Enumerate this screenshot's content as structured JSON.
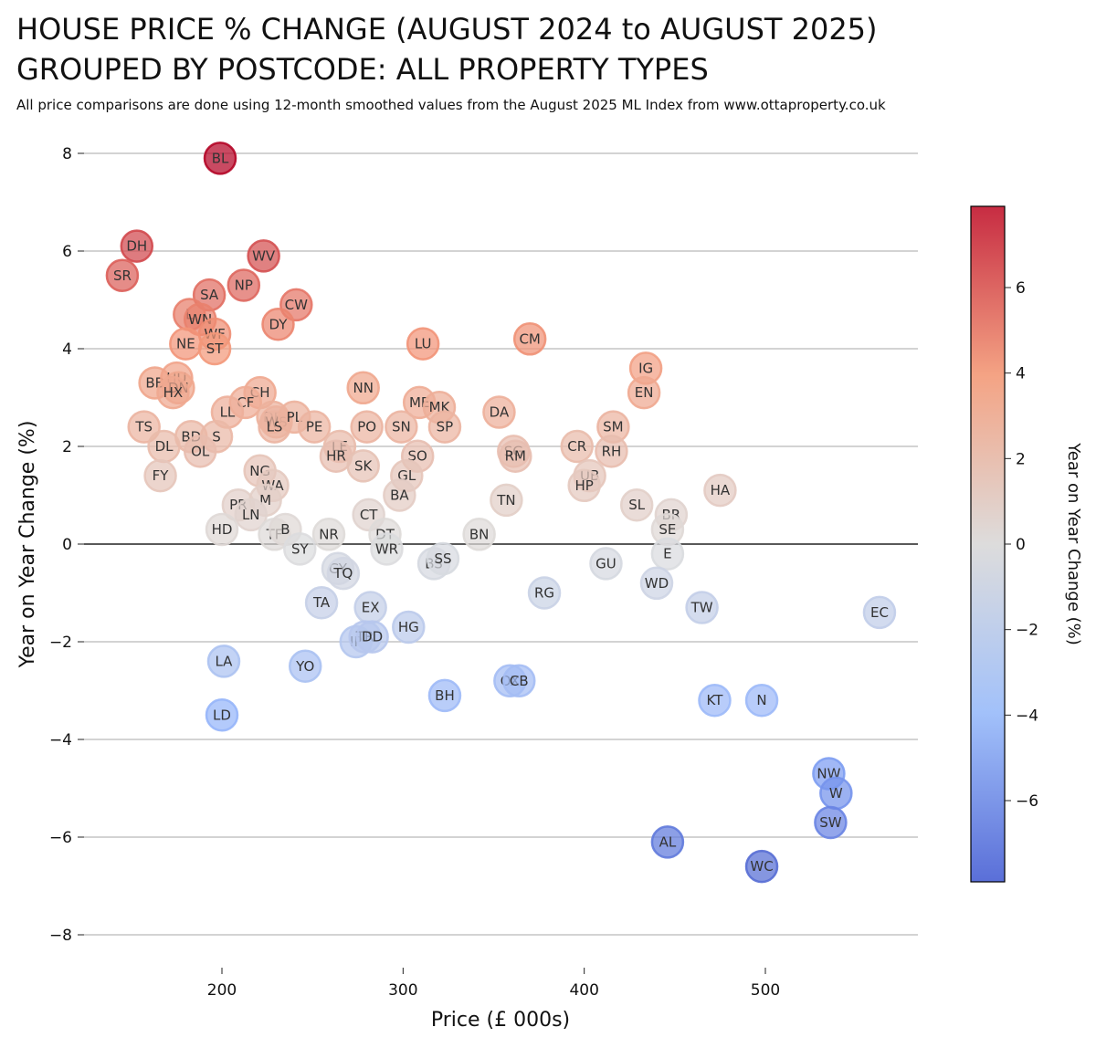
{
  "page": {
    "title_line1": "HOUSE PRICE % CHANGE (AUGUST 2024 to AUGUST 2025)",
    "title_line2": "GROUPED BY POSTCODE: ALL PROPERTY TYPES",
    "subtitle": "All price comparisons are done using 12-month smoothed values from the August 2025 ML Index from www.ottaproperty.co.uk"
  },
  "chart_data": {
    "type": "scatter",
    "xlabel": "Price (£ 000s)",
    "ylabel": "Year on Year Change (%)",
    "xlim": [
      122,
      584
    ],
    "ylim": [
      -8.5,
      8.5
    ],
    "xticks": [
      200,
      300,
      400,
      500
    ],
    "yticks": [
      -8,
      -6,
      -4,
      -2,
      0,
      2,
      4,
      6,
      8
    ],
    "grid": "horizontal",
    "colorbar": {
      "label": "Year on Year Change (%)",
      "range": [
        -7.9,
        7.9
      ],
      "ticks": [
        -6,
        -4,
        -2,
        0,
        2,
        4,
        6
      ],
      "colormap": "coolwarm"
    },
    "points": [
      {
        "label": "BL",
        "x": 199,
        "y": 7.9
      },
      {
        "label": "DH",
        "x": 153,
        "y": 6.1
      },
      {
        "label": "SR",
        "x": 145,
        "y": 5.5
      },
      {
        "label": "WV",
        "x": 223,
        "y": 5.9
      },
      {
        "label": "SA",
        "x": 193,
        "y": 5.1
      },
      {
        "label": "NP",
        "x": 212,
        "y": 5.3
      },
      {
        "label": "CW",
        "x": 241,
        "y": 4.9
      },
      {
        "label": "DY",
        "x": 231,
        "y": 4.5
      },
      {
        "label": "L",
        "x": 182,
        "y": 4.7
      },
      {
        "label": "WN",
        "x": 188,
        "y": 4.6
      },
      {
        "label": "WF",
        "x": 196,
        "y": 4.3
      },
      {
        "label": "NE",
        "x": 180,
        "y": 4.1
      },
      {
        "label": "ST",
        "x": 196,
        "y": 4.0
      },
      {
        "label": "LU",
        "x": 311,
        "y": 4.1
      },
      {
        "label": "CM",
        "x": 370,
        "y": 4.2
      },
      {
        "label": "IG",
        "x": 434,
        "y": 3.6
      },
      {
        "label": "EN",
        "x": 433,
        "y": 3.1
      },
      {
        "label": "BB",
        "x": 163,
        "y": 3.3
      },
      {
        "label": "HU",
        "x": 175,
        "y": 3.4
      },
      {
        "label": "DN",
        "x": 176,
        "y": 3.2
      },
      {
        "label": "HX",
        "x": 173,
        "y": 3.1
      },
      {
        "label": "CH",
        "x": 221,
        "y": 3.1
      },
      {
        "label": "CF",
        "x": 213,
        "y": 2.9
      },
      {
        "label": "LL",
        "x": 203,
        "y": 2.7
      },
      {
        "label": "NN",
        "x": 278,
        "y": 3.2
      },
      {
        "label": "ME",
        "x": 309,
        "y": 2.9
      },
      {
        "label": "MK",
        "x": 320,
        "y": 2.8
      },
      {
        "label": "DA",
        "x": 353,
        "y": 2.7
      },
      {
        "label": "DE",
        "x": 228,
        "y": 2.6
      },
      {
        "label": "WS",
        "x": 230,
        "y": 2.5
      },
      {
        "label": "LS",
        "x": 229,
        "y": 2.4
      },
      {
        "label": "PL",
        "x": 240,
        "y": 2.6
      },
      {
        "label": "PE",
        "x": 251,
        "y": 2.4
      },
      {
        "label": "TS",
        "x": 157,
        "y": 2.4
      },
      {
        "label": "BD",
        "x": 183,
        "y": 2.2
      },
      {
        "label": "S",
        "x": 197,
        "y": 2.2
      },
      {
        "label": "DL",
        "x": 168,
        "y": 2.0
      },
      {
        "label": "OL",
        "x": 188,
        "y": 1.9
      },
      {
        "label": "SN",
        "x": 299,
        "y": 2.4
      },
      {
        "label": "PO",
        "x": 280,
        "y": 2.4
      },
      {
        "label": "SP",
        "x": 323,
        "y": 2.4
      },
      {
        "label": "SM",
        "x": 416,
        "y": 2.4
      },
      {
        "label": "CR",
        "x": 396,
        "y": 2.0
      },
      {
        "label": "RH",
        "x": 415,
        "y": 1.9
      },
      {
        "label": "SG",
        "x": 361,
        "y": 1.9
      },
      {
        "label": "RM",
        "x": 362,
        "y": 1.8
      },
      {
        "label": "LE",
        "x": 265,
        "y": 2.0
      },
      {
        "label": "HR",
        "x": 263,
        "y": 1.8
      },
      {
        "label": "SO",
        "x": 308,
        "y": 1.8
      },
      {
        "label": "SK",
        "x": 278,
        "y": 1.6
      },
      {
        "label": "FY",
        "x": 166,
        "y": 1.4
      },
      {
        "label": "NG",
        "x": 221,
        "y": 1.5
      },
      {
        "label": "WA",
        "x": 228,
        "y": 1.2
      },
      {
        "label": "GL",
        "x": 302,
        "y": 1.4
      },
      {
        "label": "BA",
        "x": 298,
        "y": 1.0
      },
      {
        "label": "UB",
        "x": 403,
        "y": 1.4
      },
      {
        "label": "HP",
        "x": 400,
        "y": 1.2
      },
      {
        "label": "HA",
        "x": 475,
        "y": 1.1
      },
      {
        "label": "TN",
        "x": 357,
        "y": 0.9
      },
      {
        "label": "PR",
        "x": 209,
        "y": 0.8
      },
      {
        "label": "M",
        "x": 224,
        "y": 0.9
      },
      {
        "label": "LN",
        "x": 216,
        "y": 0.6
      },
      {
        "label": "SL",
        "x": 429,
        "y": 0.8
      },
      {
        "label": "BR",
        "x": 448,
        "y": 0.6
      },
      {
        "label": "SE",
        "x": 446,
        "y": 0.3
      },
      {
        "label": "CT",
        "x": 281,
        "y": 0.6
      },
      {
        "label": "HD",
        "x": 200,
        "y": 0.3
      },
      {
        "label": "TF",
        "x": 229,
        "y": 0.2
      },
      {
        "label": "B",
        "x": 235,
        "y": 0.3
      },
      {
        "label": "NR",
        "x": 259,
        "y": 0.2
      },
      {
        "label": "DT",
        "x": 290,
        "y": 0.2
      },
      {
        "label": "BN",
        "x": 342,
        "y": 0.2
      },
      {
        "label": "SY",
        "x": 243,
        "y": -0.1
      },
      {
        "label": "WR",
        "x": 291,
        "y": -0.1
      },
      {
        "label": "E",
        "x": 446,
        "y": -0.2
      },
      {
        "label": "BS",
        "x": 317,
        "y": -0.4
      },
      {
        "label": "SS",
        "x": 322,
        "y": -0.3
      },
      {
        "label": "GU",
        "x": 412,
        "y": -0.4
      },
      {
        "label": "GY",
        "x": 264,
        "y": -0.5
      },
      {
        "label": "TQ",
        "x": 267,
        "y": -0.6
      },
      {
        "label": "WD",
        "x": 440,
        "y": -0.8
      },
      {
        "label": "RG",
        "x": 378,
        "y": -1.0
      },
      {
        "label": "TA",
        "x": 255,
        "y": -1.2
      },
      {
        "label": "EX",
        "x": 282,
        "y": -1.3
      },
      {
        "label": "TW",
        "x": 465,
        "y": -1.3
      },
      {
        "label": "EC",
        "x": 563,
        "y": -1.4
      },
      {
        "label": "HG",
        "x": 303,
        "y": -1.7
      },
      {
        "label": "IP",
        "x": 274,
        "y": -2.0
      },
      {
        "label": "TR",
        "x": 279,
        "y": -1.9
      },
      {
        "label": "DD",
        "x": 283,
        "y": -1.9
      },
      {
        "label": "LA",
        "x": 201,
        "y": -2.4
      },
      {
        "label": "YO",
        "x": 246,
        "y": -2.5
      },
      {
        "label": "OX",
        "x": 359,
        "y": -2.8
      },
      {
        "label": "CB",
        "x": 364,
        "y": -2.8
      },
      {
        "label": "BH",
        "x": 323,
        "y": -3.1
      },
      {
        "label": "KT",
        "x": 472,
        "y": -3.2
      },
      {
        "label": "N",
        "x": 498,
        "y": -3.2
      },
      {
        "label": "LD",
        "x": 200,
        "y": -3.5
      },
      {
        "label": "NW",
        "x": 535,
        "y": -4.7
      },
      {
        "label": "W",
        "x": 539,
        "y": -5.1
      },
      {
        "label": "SW",
        "x": 536,
        "y": -5.7
      },
      {
        "label": "AL",
        "x": 446,
        "y": -6.1
      },
      {
        "label": "WC",
        "x": 498,
        "y": -6.6
      }
    ]
  }
}
